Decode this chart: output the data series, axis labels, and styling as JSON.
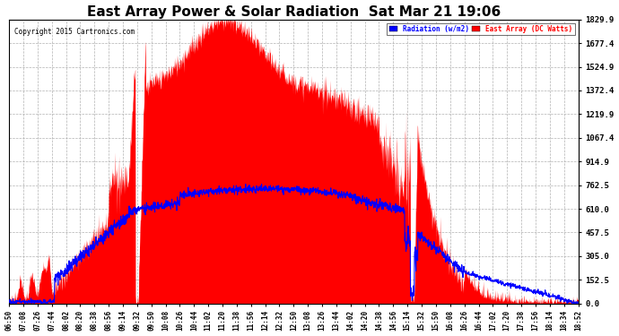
{
  "title": "East Array Power & Solar Radiation  Sat Mar 21 19:06",
  "copyright": "Copyright 2015 Cartronics.com",
  "legend_labels": [
    "Radiation (w/m2)",
    "East Array (DC Watts)"
  ],
  "legend_colors": [
    "blue",
    "red"
  ],
  "y_ticks": [
    0.0,
    152.5,
    305.0,
    457.5,
    610.0,
    762.5,
    914.9,
    1067.4,
    1219.9,
    1372.4,
    1524.9,
    1677.4,
    1829.9
  ],
  "y_max": 1829.9,
  "y_min": 0.0,
  "background_color": "#ffffff",
  "plot_bg_color": "#ffffff",
  "grid_color": "#aaaaaa",
  "title_fontsize": 11,
  "title_color": "#000000",
  "x_tick_labels": [
    "06:50",
    "07:08",
    "07:26",
    "07:44",
    "08:02",
    "08:20",
    "08:38",
    "08:56",
    "09:14",
    "09:32",
    "09:50",
    "10:08",
    "10:26",
    "10:44",
    "11:02",
    "11:20",
    "11:38",
    "11:56",
    "12:14",
    "12:32",
    "12:50",
    "13:08",
    "13:26",
    "13:44",
    "14:02",
    "14:20",
    "14:38",
    "14:56",
    "15:14",
    "15:32",
    "15:50",
    "16:08",
    "16:26",
    "16:44",
    "17:02",
    "17:20",
    "17:38",
    "17:56",
    "18:14",
    "18:34",
    "18:52"
  ],
  "n_points": 2000
}
